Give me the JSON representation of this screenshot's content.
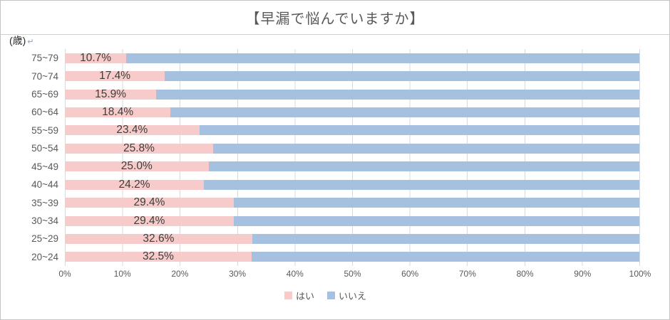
{
  "y_axis_unit": {
    "text": "(歳)",
    "mark": "↵"
  },
  "chart_data": {
    "type": "bar",
    "orientation": "horizontal",
    "stacked": true,
    "title": "【早漏で悩んでいますか】",
    "categories": [
      "75~79",
      "70~74",
      "65~69",
      "60~64",
      "55~59",
      "50~54",
      "45~49",
      "40~44",
      "35~39",
      "30~34",
      "25~29",
      "20~24"
    ],
    "series": [
      {
        "name": "はい",
        "color": "#f7cbca",
        "values": [
          10.7,
          17.4,
          15.9,
          18.4,
          23.4,
          25.8,
          25.0,
          24.2,
          29.4,
          29.4,
          32.6,
          32.5
        ]
      },
      {
        "name": "いいえ",
        "color": "#a6c0e0",
        "values": [
          89.3,
          82.6,
          84.1,
          81.6,
          76.6,
          74.2,
          75.0,
          75.8,
          70.6,
          70.6,
          67.4,
          67.5
        ]
      }
    ],
    "data_labels": [
      "10.7%",
      "17.4%",
      "15.9%",
      "18.4%",
      "23.4%",
      "25.8%",
      "25.0%",
      "24.2%",
      "29.4%",
      "29.4%",
      "32.6%",
      "32.5%"
    ],
    "x_ticks": [
      "0%",
      "10%",
      "20%",
      "30%",
      "40%",
      "50%",
      "60%",
      "70%",
      "80%",
      "90%",
      "100%"
    ],
    "xlim": [
      0,
      100
    ],
    "grid": true,
    "legend_position": "bottom",
    "colors": {
      "gridline": "#d9d9d9",
      "label_text": "#3d3d3d",
      "axis_text": "#595959"
    }
  }
}
